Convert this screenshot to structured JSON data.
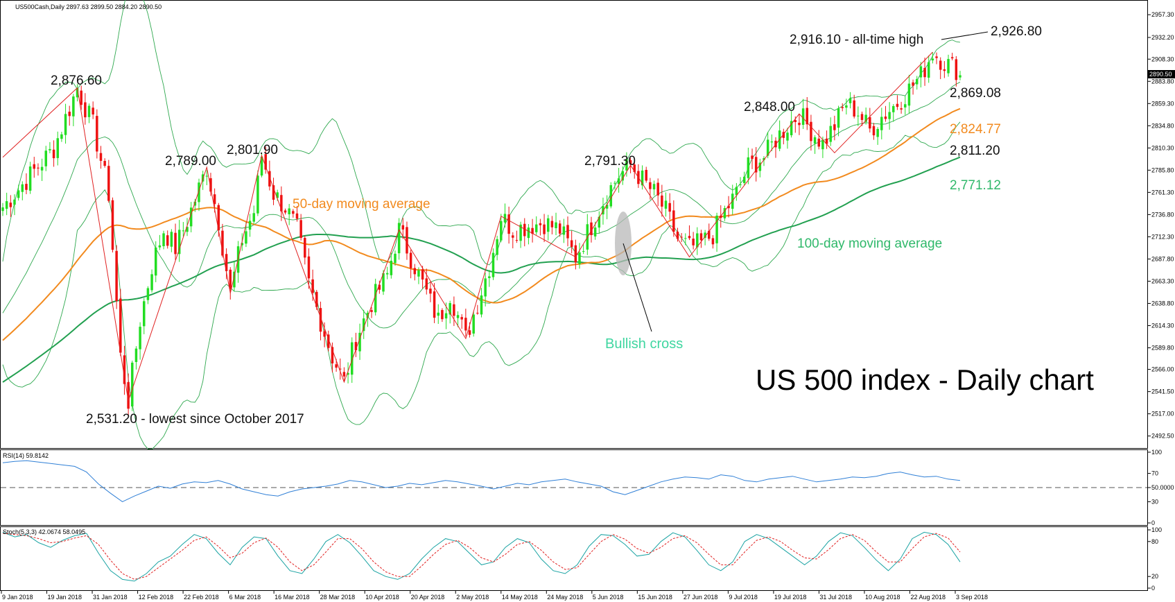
{
  "chart_data": [
    {
      "type": "candlestick",
      "symbol_header": "US500Cash,Daily  2897.63 2899.50 2884.20 2890.50",
      "title": "US 500 index - Daily chart",
      "ylim": [
        2480,
        2972
      ],
      "y_ticks": [
        "2957.30",
        "2932.20",
        "2908.30",
        "2883.80",
        "2859.30",
        "2834.80",
        "2810.30",
        "2785.80",
        "2761.30",
        "2736.80",
        "2712.30",
        "2687.80",
        "2663.30",
        "2638.80",
        "2614.30",
        "2589.80",
        "2566.00",
        "2541.50",
        "2517.00",
        "2492.50"
      ],
      "y_tick_values": [
        2957.3,
        2932.2,
        2908.3,
        2883.8,
        2859.3,
        2834.8,
        2810.3,
        2785.8,
        2761.3,
        2736.8,
        2712.3,
        2687.8,
        2663.3,
        2638.8,
        2614.3,
        2589.8,
        2566.0,
        2541.5,
        2517.0,
        2492.5
      ],
      "x_ticks": [
        "9 Jan 2018",
        "19 Jan 2018",
        "31 Jan 2018",
        "12 Feb 2018",
        "22 Feb 2018",
        "6 Mar 2018",
        "16 Mar 2018",
        "28 Mar 2018",
        "10 Apr 2018",
        "20 Apr 2018",
        "2 May 2018",
        "14 May 2018",
        "24 May 2018",
        "5 Jun 2018",
        "15 Jun 2018",
        "27 Jun 2018",
        "9 Jul 2018",
        "19 Jul 2018",
        "31 Jul 2018",
        "10 Aug 2018",
        "22 Aug 2018",
        "3 Sep 2018"
      ],
      "current_price_label": "2890.50",
      "current_price": 2890.5,
      "close_path": [
        [
          0,
          2745
        ],
        [
          5,
          2770
        ],
        [
          9,
          2790
        ],
        [
          13,
          2810
        ],
        [
          19,
          2876.6
        ],
        [
          23,
          2835
        ],
        [
          27,
          2760
        ],
        [
          30,
          2580
        ],
        [
          32,
          2531.2
        ],
        [
          35,
          2620
        ],
        [
          38,
          2680
        ],
        [
          41,
          2720
        ],
        [
          44,
          2700
        ],
        [
          47,
          2730
        ],
        [
          52,
          2789
        ],
        [
          55,
          2730
        ],
        [
          58,
          2650
        ],
        [
          61,
          2710
        ],
        [
          64,
          2740
        ],
        [
          66,
          2801.9
        ],
        [
          69,
          2760
        ],
        [
          72,
          2745
        ],
        [
          75,
          2720
        ],
        [
          78,
          2660
        ],
        [
          81,
          2620
        ],
        [
          84,
          2580
        ],
        [
          87,
          2552
        ],
        [
          90,
          2600
        ],
        [
          94,
          2640
        ],
        [
          98,
          2670
        ],
        [
          101,
          2720
        ],
        [
          104,
          2690
        ],
        [
          108,
          2650
        ],
        [
          111,
          2620
        ],
        [
          114,
          2650
        ],
        [
          118,
          2600
        ],
        [
          121,
          2640
        ],
        [
          124,
          2680
        ],
        [
          127,
          2735
        ],
        [
          130,
          2720
        ],
        [
          134,
          2725
        ],
        [
          138,
          2728
        ],
        [
          142,
          2720
        ],
        [
          146,
          2690
        ],
        [
          150,
          2725
        ],
        [
          154,
          2760
        ],
        [
          157,
          2780
        ],
        [
          160,
          2791.3
        ],
        [
          163,
          2775
        ],
        [
          166,
          2760
        ],
        [
          169,
          2740
        ],
        [
          172,
          2710
        ],
        [
          175,
          2700
        ],
        [
          178,
          2705
        ],
        [
          181,
          2715
        ],
        [
          184,
          2740
        ],
        [
          187,
          2760
        ],
        [
          190,
          2790
        ],
        [
          194,
          2800
        ],
        [
          197,
          2820
        ],
        [
          200,
          2835
        ],
        [
          203,
          2848
        ],
        [
          206,
          2830
        ],
        [
          209,
          2815
        ],
        [
          212,
          2835
        ],
        [
          215,
          2860
        ],
        [
          218,
          2850
        ],
        [
          221,
          2830
        ],
        [
          224,
          2845
        ],
        [
          228,
          2860
        ],
        [
          231,
          2875
        ],
        [
          234,
          2890
        ],
        [
          237,
          2916.1
        ],
        [
          240,
          2905
        ],
        [
          242,
          2900
        ],
        [
          244,
          2895
        ]
      ],
      "candle_count": 245,
      "annotations": [
        {
          "text": "2,876.60",
          "value": 2876.6
        },
        {
          "text": "2,789.00",
          "value": 2789.0
        },
        {
          "text": "2,801.90",
          "value": 2801.9
        },
        {
          "text": "2,531.20 - lowest since October 2017",
          "value": 2531.2
        },
        {
          "text": "2,791.30",
          "value": 2791.3
        },
        {
          "text": "2,848.00",
          "value": 2848.0
        },
        {
          "text": "2,916.10 - all-time high",
          "value": 2916.1
        },
        {
          "text": "2,926.80",
          "value": 2926.8
        },
        {
          "text": "2,869.08",
          "value": 2869.08
        },
        {
          "text": "2,824.77",
          "value": 2824.77
        },
        {
          "text": "2,811.20",
          "value": 2811.2
        },
        {
          "text": "2,771.12",
          "value": 2771.12
        }
      ],
      "labels": {
        "ma50": "50-day moving average",
        "ma100": "100-day moving average",
        "bullish_cross": "Bullish cross"
      },
      "colors": {
        "up": "#22dd22",
        "down": "#ee1111",
        "ma50": "#f28a1e",
        "ma100": "#22a050",
        "bollinger": "#2ea84e",
        "zigzag": "#e02020"
      }
    },
    {
      "type": "line",
      "name": "rsi",
      "header": "RSI(14) 59.8142",
      "ylim": [
        0,
        100
      ],
      "y_ticks": [
        "100",
        "70",
        "50.0000",
        "30",
        "0"
      ],
      "y_tick_values": [
        100,
        70,
        50,
        30,
        0
      ],
      "level_line": 50,
      "values": [
        85,
        87,
        88,
        86,
        84,
        82,
        80,
        72,
        55,
        42,
        30,
        38,
        45,
        52,
        49,
        55,
        58,
        57,
        60,
        55,
        48,
        44,
        40,
        38,
        44,
        48,
        50,
        52,
        55,
        60,
        58,
        54,
        50,
        52,
        56,
        54,
        57,
        60,
        58,
        55,
        52,
        48,
        52,
        56,
        54,
        58,
        60,
        62,
        58,
        55,
        52,
        44,
        40,
        46,
        52,
        58,
        62,
        65,
        64,
        62,
        68,
        66,
        60,
        58,
        62,
        64,
        66,
        62,
        58,
        60,
        62,
        65,
        64,
        66,
        70,
        72,
        68,
        65,
        66,
        62,
        60
      ]
    },
    {
      "type": "line",
      "name": "stochastic",
      "header": "Stoch(5,3,3) 42.0674 58.0495",
      "ylim": [
        0,
        100
      ],
      "y_ticks": [
        "100",
        "80",
        "20",
        "0"
      ],
      "y_tick_values": [
        100,
        80,
        20,
        0
      ],
      "k_values": [
        96,
        88,
        92,
        78,
        70,
        82,
        90,
        94,
        60,
        30,
        15,
        12,
        25,
        45,
        55,
        75,
        92,
        85,
        60,
        40,
        70,
        88,
        85,
        55,
        30,
        25,
        50,
        80,
        92,
        78,
        55,
        30,
        20,
        15,
        25,
        50,
        70,
        85,
        80,
        60,
        40,
        45,
        70,
        85,
        78,
        50,
        30,
        25,
        40,
        72,
        92,
        90,
        75,
        55,
        58,
        80,
        95,
        88,
        65,
        40,
        30,
        45,
        80,
        92,
        85,
        70,
        55,
        40,
        55,
        80,
        95,
        90,
        70,
        48,
        30,
        50,
        85,
        96,
        92,
        75,
        45
      ],
      "d_values": [
        94,
        92,
        90,
        85,
        78,
        80,
        86,
        90,
        75,
        48,
        25,
        15,
        20,
        35,
        50,
        65,
        82,
        88,
        72,
        52,
        60,
        78,
        86,
        70,
        45,
        30,
        40,
        62,
        85,
        85,
        68,
        45,
        28,
        20,
        20,
        38,
        58,
        75,
        82,
        70,
        52,
        45,
        58,
        75,
        80,
        65,
        45,
        32,
        35,
        58,
        80,
        92,
        84,
        68,
        60,
        70,
        85,
        90,
        78,
        58,
        40,
        40,
        62,
        82,
        88,
        80,
        65,
        52,
        50,
        66,
        85,
        92,
        82,
        62,
        45,
        45,
        68,
        88,
        94,
        86,
        62
      ]
    }
  ]
}
